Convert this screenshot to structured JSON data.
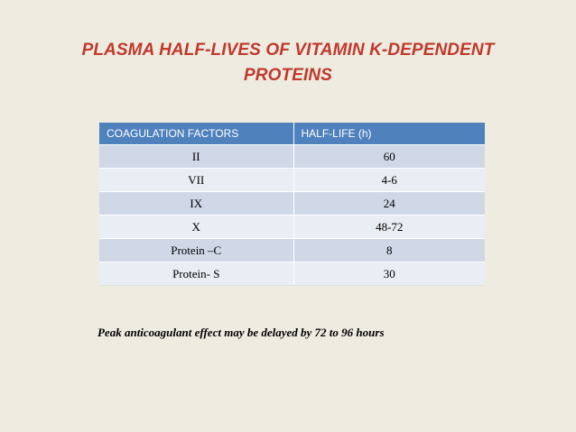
{
  "title": "PLASMA HALF-LIVES OF VITAMIN K-DEPENDENT PROTEINS",
  "table": {
    "headers": [
      "COAGULATION FACTORS",
      "HALF-LIFE (h)"
    ],
    "rows": [
      [
        "II",
        "60"
      ],
      [
        "VII",
        "4-6"
      ],
      [
        "IX",
        "24"
      ],
      [
        "X",
        "48-72"
      ],
      [
        "Protein –C",
        "8"
      ],
      [
        "Protein- S",
        "30"
      ]
    ]
  },
  "footnote": "Peak anticoagulant effect may be delayed by 72 to 96 hours",
  "colors": {
    "background": "#eeebe1",
    "title": "#c0392b",
    "header": "#4f81bd",
    "row_odd": "#d0d8e8",
    "row_even": "#e9edf4"
  }
}
